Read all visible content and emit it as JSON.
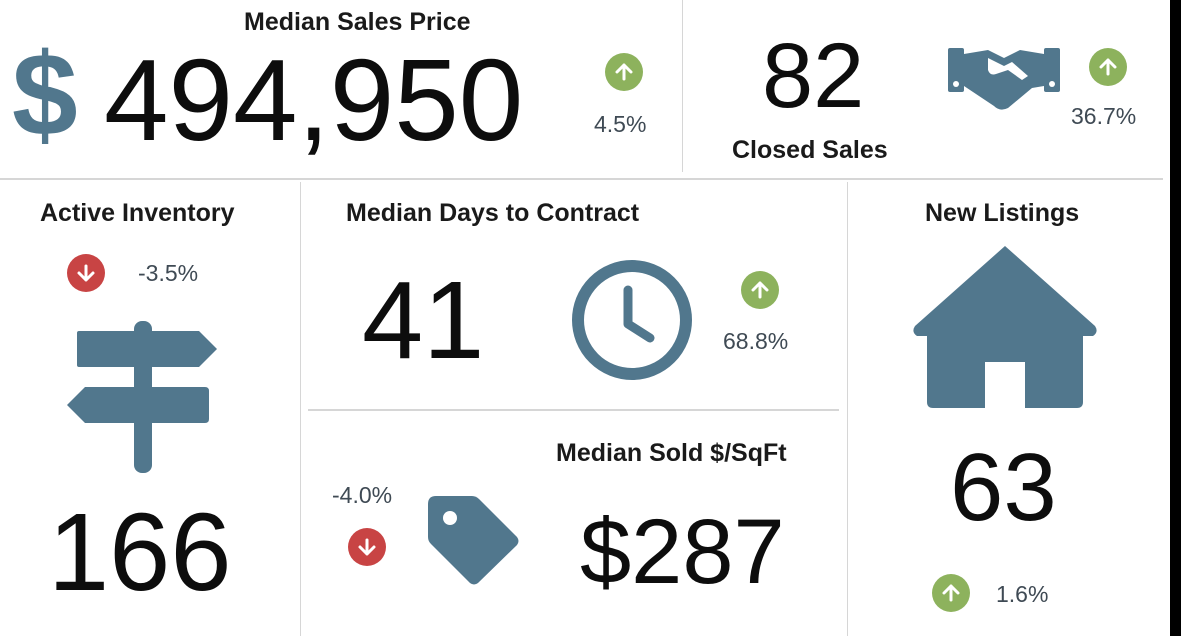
{
  "colors": {
    "icon": "#51778d",
    "up": "#8db25d",
    "down": "#c84444",
    "text": "#0d0d0d",
    "pct_text": "#3f4a54"
  },
  "median_sales_price": {
    "title": "Median Sales Price",
    "currency": "$",
    "value": "494,950",
    "change": "4.5%",
    "direction": "up",
    "icon": "dollar-icon"
  },
  "closed_sales": {
    "title": "Closed Sales",
    "value": "82",
    "change": "36.7%",
    "direction": "up",
    "icon": "handshake-icon"
  },
  "active_inventory": {
    "title": "Active Inventory",
    "value": "166",
    "change": "-3.5%",
    "direction": "down",
    "icon": "signpost-icon"
  },
  "median_days_to_contract": {
    "title": "Median Days to Contract",
    "value": "41",
    "change": "68.8%",
    "direction": "up",
    "icon": "clock-icon"
  },
  "median_sold_sqft": {
    "title": "Median Sold $/SqFt",
    "value": "$287",
    "change": "-4.0%",
    "direction": "down",
    "icon": "price-tag-icon"
  },
  "new_listings": {
    "title": "New Listings",
    "value": "63",
    "change": "1.6%",
    "direction": "up",
    "icon": "house-icon"
  }
}
